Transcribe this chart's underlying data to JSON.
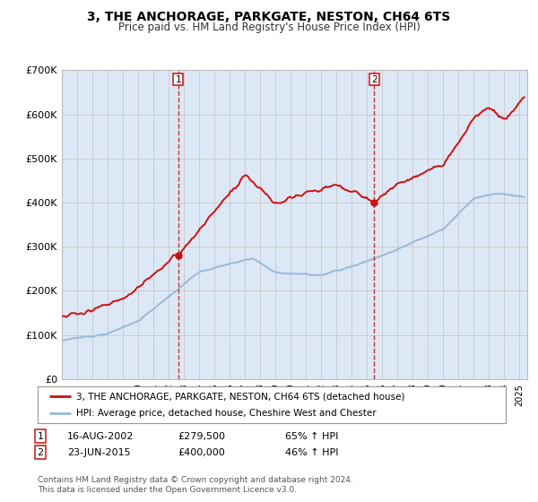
{
  "title": "3, THE ANCHORAGE, PARKGATE, NESTON, CH64 6TS",
  "subtitle": "Price paid vs. HM Land Registry's House Price Index (HPI)",
  "legend_line1": "3, THE ANCHORAGE, PARKGATE, NESTON, CH64 6TS (detached house)",
  "legend_line2": "HPI: Average price, detached house, Cheshire West and Chester",
  "transaction1_date": "16-AUG-2002",
  "transaction1_price": "£279,500",
  "transaction1_hpi": "65% ↑ HPI",
  "transaction1_year": 2002.62,
  "transaction1_value": 279500,
  "transaction2_date": "23-JUN-2015",
  "transaction2_price": "£400,000",
  "transaction2_hpi": "46% ↑ HPI",
  "transaction2_year": 2015.47,
  "transaction2_value": 400000,
  "footnote1": "Contains HM Land Registry data © Crown copyright and database right 2024.",
  "footnote2": "This data is licensed under the Open Government Licence v3.0.",
  "hpi_color": "#9ab8d8",
  "price_color": "#cc1111",
  "background_color": "#ffffff",
  "grid_color": "#cccccc",
  "plot_bg": "#dce8f5",
  "ylim": [
    0,
    700000
  ],
  "xlim_start": 1995,
  "xlim_end": 2025.5,
  "yticks": [
    0,
    100000,
    200000,
    300000,
    400000,
    500000,
    600000,
    700000
  ],
  "ylabels": [
    "£0",
    "£100K",
    "£200K",
    "£300K",
    "£400K",
    "£500K",
    "£600K",
    "£700K"
  ]
}
